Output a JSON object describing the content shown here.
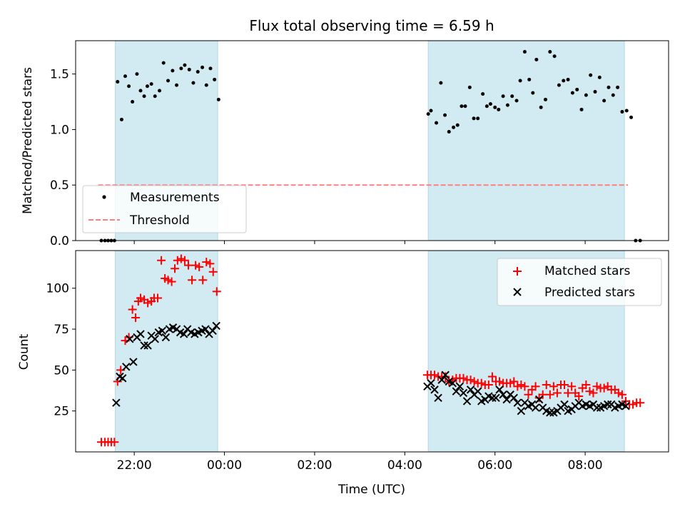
{
  "chart_data": {
    "type": "scatter",
    "title": "Flux total observing time = 6.59 h",
    "xlabel": "Time (UTC)",
    "x_ticks": [
      {
        "value": 22.0,
        "label": "22:00"
      },
      {
        "value": 24.0,
        "label": "00:00"
      },
      {
        "value": 26.0,
        "label": "02:00"
      },
      {
        "value": 28.0,
        "label": "04:00"
      },
      {
        "value": 30.0,
        "label": "06:00"
      },
      {
        "value": 32.0,
        "label": "08:00"
      }
    ],
    "x_unit_note": "hours since 00:00 of first night (values >24 are after midnight)",
    "xlim": [
      20.7,
      33.85
    ],
    "shaded_intervals": [
      [
        21.58,
        23.85
      ],
      [
        28.52,
        32.87
      ]
    ],
    "shade_color": "#add8e6",
    "panels": [
      {
        "id": "ratio",
        "ylabel": "Matched/Predicted stars",
        "ylim": [
          0.0,
          1.8
        ],
        "y_ticks": [
          0.0,
          0.5,
          1.0,
          1.5
        ],
        "y_tick_labels": [
          "0.0",
          "0.5",
          "1.0",
          "1.5"
        ],
        "legend": {
          "position": "lower-left",
          "entries": [
            "Measurements",
            "Threshold"
          ]
        },
        "threshold": {
          "name": "Threshold",
          "value": 0.5,
          "x_range": [
            21.2,
            32.95
          ],
          "color": "#ff7f7f"
        },
        "series": [
          {
            "name": "Measurements",
            "marker": "dot",
            "color": "#000000",
            "x": [
              21.27,
              21.35,
              21.42,
              21.49,
              21.56,
              21.63,
              21.72,
              21.8,
              21.88,
              21.96,
              22.06,
              22.14,
              22.22,
              22.29,
              22.38,
              22.46,
              22.56,
              22.65,
              22.75,
              22.85,
              22.94,
              23.04,
              23.12,
              23.22,
              23.31,
              23.41,
              23.51,
              23.6,
              23.69,
              23.78,
              23.87,
              28.52,
              28.58,
              28.7,
              28.8,
              28.89,
              28.98,
              29.08,
              29.17,
              29.26,
              29.34,
              29.44,
              29.53,
              29.62,
              29.73,
              29.82,
              29.9,
              30.0,
              30.08,
              30.18,
              30.28,
              30.38,
              30.48,
              30.56,
              30.66,
              30.76,
              30.84,
              30.92,
              31.02,
              31.12,
              31.22,
              31.32,
              31.42,
              31.52,
              31.62,
              31.72,
              31.82,
              31.92,
              32.02,
              32.12,
              32.22,
              32.32,
              32.42,
              32.52,
              32.62,
              32.72,
              32.82,
              32.92,
              33.02,
              33.12,
              33.22
            ],
            "y": [
              0.0,
              0.0,
              0.0,
              0.0,
              0.0,
              1.43,
              1.09,
              1.48,
              1.39,
              1.25,
              1.5,
              1.35,
              1.3,
              1.39,
              1.41,
              1.3,
              1.35,
              1.6,
              1.44,
              1.53,
              1.4,
              1.55,
              1.58,
              1.54,
              1.42,
              1.52,
              1.56,
              1.4,
              1.55,
              1.45,
              1.27,
              1.14,
              1.17,
              1.06,
              1.42,
              1.13,
              0.98,
              1.02,
              1.04,
              1.21,
              1.21,
              1.38,
              1.1,
              1.1,
              1.32,
              1.21,
              1.23,
              1.2,
              1.18,
              1.3,
              1.22,
              1.3,
              1.26,
              1.44,
              1.7,
              1.45,
              1.33,
              1.63,
              1.2,
              1.27,
              1.7,
              1.66,
              1.4,
              1.44,
              1.45,
              1.33,
              1.36,
              1.18,
              1.31,
              1.49,
              1.34,
              1.47,
              1.26,
              1.38,
              1.31,
              1.38,
              1.16,
              1.17,
              1.11,
              0.0,
              0.0
            ]
          }
        ]
      },
      {
        "id": "count",
        "ylabel": "Count",
        "ylim": [
          0,
          123
        ],
        "y_ticks": [
          25,
          50,
          75,
          100
        ],
        "y_tick_labels": [
          "25",
          "50",
          "75",
          "100"
        ],
        "legend": {
          "position": "upper-right",
          "entries": [
            "Matched stars",
            "Predicted stars"
          ]
        },
        "series": [
          {
            "name": "Matched stars",
            "marker": "plus",
            "color": "#ff0000",
            "x": [
              21.27,
              21.35,
              21.42,
              21.49,
              21.56,
              21.63,
              21.7,
              21.8,
              21.88,
              21.96,
              22.03,
              22.09,
              22.14,
              22.22,
              22.3,
              22.38,
              22.44,
              22.52,
              22.6,
              22.68,
              22.75,
              22.83,
              22.9,
              22.96,
              23.04,
              23.12,
              23.2,
              23.28,
              23.36,
              23.44,
              23.52,
              23.6,
              23.68,
              23.75,
              23.83,
              28.5,
              28.58,
              28.66,
              28.74,
              28.82,
              28.9,
              28.98,
              29.06,
              29.14,
              29.22,
              29.3,
              29.38,
              29.46,
              29.54,
              29.62,
              29.7,
              29.78,
              29.86,
              29.94,
              30.02,
              30.1,
              30.18,
              30.26,
              30.34,
              30.42,
              30.5,
              30.58,
              30.66,
              30.74,
              30.82,
              30.9,
              30.98,
              31.06,
              31.14,
              31.22,
              31.3,
              31.38,
              31.46,
              31.54,
              31.62,
              31.7,
              31.78,
              31.86,
              31.94,
              32.02,
              32.1,
              32.18,
              32.26,
              32.34,
              32.42,
              32.5,
              32.58,
              32.66,
              32.74,
              32.82,
              32.9,
              32.98,
              33.06,
              33.14,
              33.22
            ],
            "y": [
              6,
              6,
              6,
              6,
              6,
              43,
              50,
              68,
              70,
              87,
              82,
              92,
              94,
              93,
              91,
              92,
              94,
              94,
              117,
              106,
              105,
              104,
              112,
              117,
              118,
              117,
              114,
              105,
              114,
              113,
              105,
              116,
              115,
              110,
              98,
              47,
              47,
              47,
              46,
              46,
              46,
              43,
              44,
              45,
              45,
              45,
              44,
              44,
              43,
              42,
              42,
              41,
              41,
              46,
              43,
              43,
              42,
              42,
              42,
              43,
              40,
              41,
              40,
              35,
              38,
              40,
              33,
              35,
              41,
              35,
              40,
              36,
              41,
              41,
              36,
              40,
              36,
              34,
              39,
              41,
              37,
              36,
              40,
              39,
              39,
              40,
              38,
              38,
              36,
              35,
              31,
              29,
              29,
              30,
              30
            ]
          },
          {
            "name": "Predicted stars",
            "marker": "x",
            "color": "#000000",
            "x": [
              21.6,
              21.68,
              21.74,
              21.82,
              21.9,
              21.98,
              22.06,
              22.14,
              22.22,
              22.3,
              22.38,
              22.46,
              22.54,
              22.62,
              22.7,
              22.78,
              22.86,
              22.94,
              23.02,
              23.1,
              23.18,
              23.26,
              23.34,
              23.42,
              23.5,
              23.58,
              23.66,
              23.74,
              23.82,
              28.5,
              28.58,
              28.66,
              28.74,
              28.82,
              28.9,
              28.98,
              29.06,
              29.14,
              29.22,
              29.3,
              29.38,
              29.46,
              29.54,
              29.62,
              29.7,
              29.78,
              29.86,
              29.94,
              30.02,
              30.1,
              30.18,
              30.26,
              30.34,
              30.42,
              30.5,
              30.58,
              30.66,
              30.74,
              30.82,
              30.9,
              30.98,
              31.06,
              31.14,
              31.22,
              31.3,
              31.38,
              31.46,
              31.54,
              31.62,
              31.7,
              31.78,
              31.86,
              31.94,
              32.02,
              32.1,
              32.18,
              32.26,
              32.34,
              32.42,
              32.5,
              32.58,
              32.66,
              32.74,
              32.82,
              32.9
            ],
            "y": [
              30,
              46,
              45,
              52,
              69,
              55,
              70,
              72,
              65,
              65,
              71,
              69,
              73,
              74,
              70,
              75,
              76,
              75,
              73,
              72,
              75,
              73,
              72,
              73,
              74,
              75,
              72,
              74,
              77,
              40,
              42,
              38,
              33,
              44,
              47,
              43,
              42,
              37,
              40,
              36,
              31,
              38,
              35,
              37,
              31,
              32,
              34,
              33,
              33,
              38,
              35,
              32,
              35,
              33,
              30,
              25,
              30,
              28,
              29,
              27,
              32,
              27,
              25,
              24,
              24,
              25,
              27,
              29,
              25,
              26,
              28,
              30,
              28,
              29,
              28,
              29,
              27,
              27,
              28,
              29,
              29,
              27,
              28,
              29,
              28
            ]
          }
        ]
      }
    ]
  }
}
